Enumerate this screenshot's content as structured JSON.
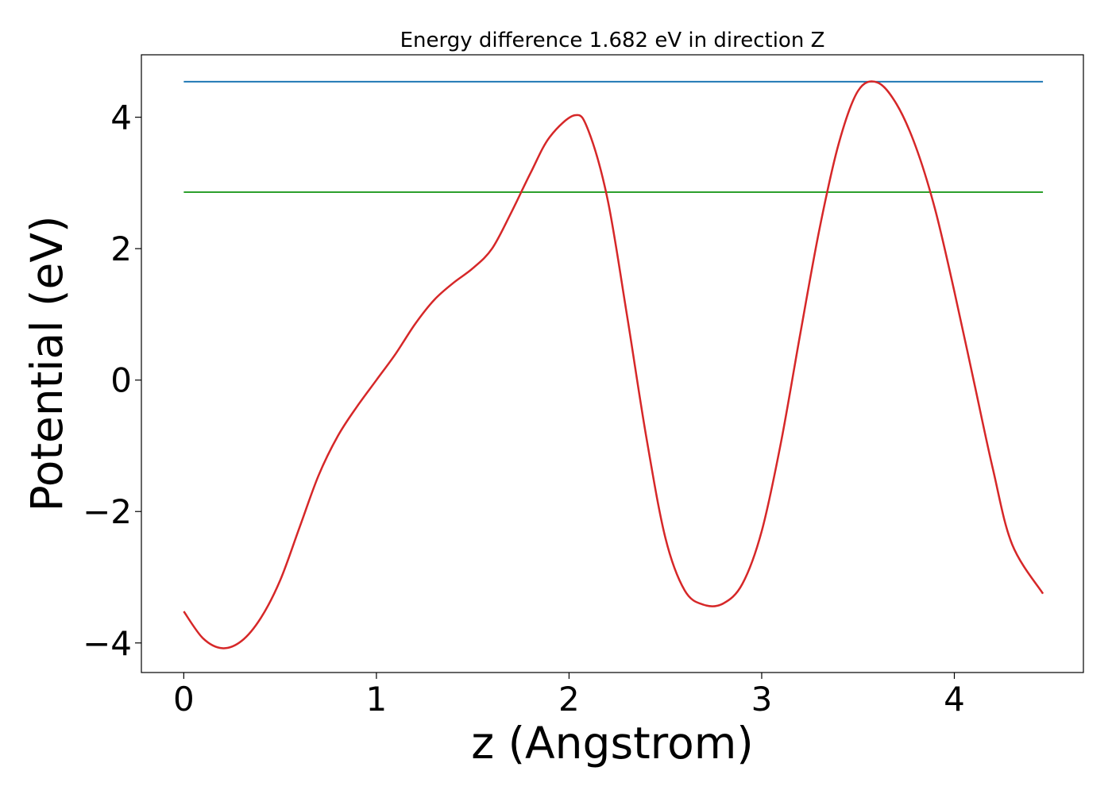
{
  "chart_data": {
    "type": "line",
    "title": "Energy difference 1.682 eV in direction Z",
    "xlabel": "z (Angstrom)",
    "ylabel": "Potential (eV)",
    "xlim": [
      -0.22,
      4.67
    ],
    "ylim": [
      -4.45,
      4.95
    ],
    "grid": false,
    "x_ticks": [
      0,
      1,
      2,
      3,
      4
    ],
    "x_tick_labels": [
      "0",
      "1",
      "2",
      "3",
      "4"
    ],
    "y_ticks": [
      -4,
      -2,
      0,
      2,
      4
    ],
    "y_tick_labels": [
      "−4",
      "−2",
      "0",
      "2",
      "4"
    ],
    "hlines": [
      {
        "y": 4.54,
        "x_range": [
          0,
          4.46
        ],
        "color": "#1f77b4"
      },
      {
        "y": 2.86,
        "x_range": [
          0,
          4.46
        ],
        "color": "#2ca02c"
      }
    ],
    "series": [
      {
        "color": "#d62728",
        "x": [
          0,
          0.1,
          0.2,
          0.3,
          0.4,
          0.5,
          0.6,
          0.7,
          0.8,
          0.9,
          1.0,
          1.1,
          1.2,
          1.3,
          1.4,
          1.5,
          1.6,
          1.7,
          1.8,
          1.9,
          2.03,
          2.1,
          2.2,
          2.3,
          2.4,
          2.5,
          2.6,
          2.7,
          2.8,
          2.9,
          3.0,
          3.1,
          3.2,
          3.3,
          3.4,
          3.5,
          3.6,
          3.7,
          3.8,
          3.9,
          4.0,
          4.1,
          4.2,
          4.3,
          4.46
        ],
        "y": [
          -3.52,
          -3.93,
          -4.08,
          -3.97,
          -3.62,
          -3.05,
          -2.25,
          -1.45,
          -0.85,
          -0.4,
          0.0,
          0.4,
          0.85,
          1.22,
          1.48,
          1.7,
          2.0,
          2.55,
          3.15,
          3.7,
          4.03,
          3.8,
          2.75,
          1.0,
          -0.85,
          -2.4,
          -3.2,
          -3.42,
          -3.4,
          -3.1,
          -2.3,
          -0.95,
          0.7,
          2.3,
          3.6,
          4.4,
          4.53,
          4.2,
          3.55,
          2.6,
          1.35,
          0.0,
          -1.35,
          -2.5,
          -3.25
        ]
      }
    ]
  }
}
